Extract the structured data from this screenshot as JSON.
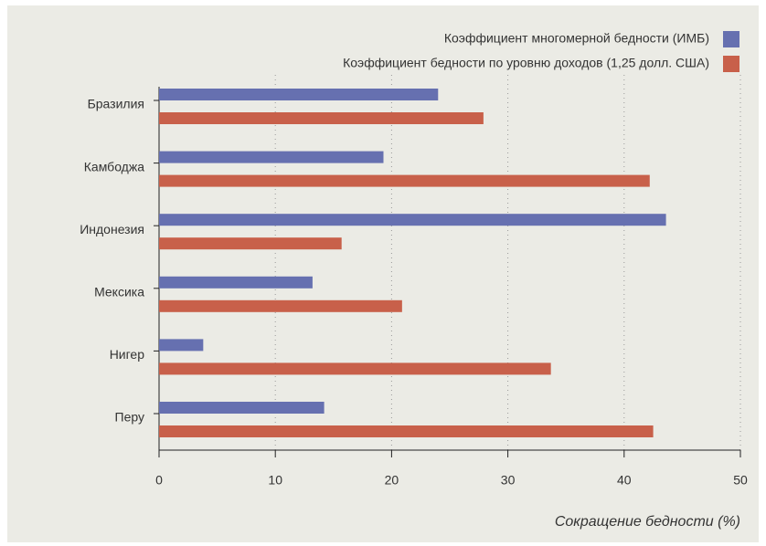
{
  "chart_data": {
    "type": "hbar",
    "categories": [
      "Бразилия",
      "Камбоджа",
      "Индонезия",
      "Мексика",
      "Нигер",
      "Перу"
    ],
    "series": [
      {
        "name": "Коэффициент многомерной бедности (ИМБ)",
        "color": "#6670b0",
        "values": [
          24,
          19.3,
          43.6,
          13.2,
          3.8,
          14.2
        ]
      },
      {
        "name": "Коэффициент бедности по уровню доходов (1,25 долл. США)",
        "color": "#c8604a",
        "values": [
          27.9,
          42.2,
          15.7,
          20.9,
          33.7,
          42.5
        ]
      }
    ],
    "xlabel": "Сокращение бедности (%)",
    "xlim": [
      0,
      50
    ],
    "xticks": [
      0,
      10,
      20,
      30,
      40,
      50
    ],
    "grid": true,
    "legend": "upper right"
  }
}
